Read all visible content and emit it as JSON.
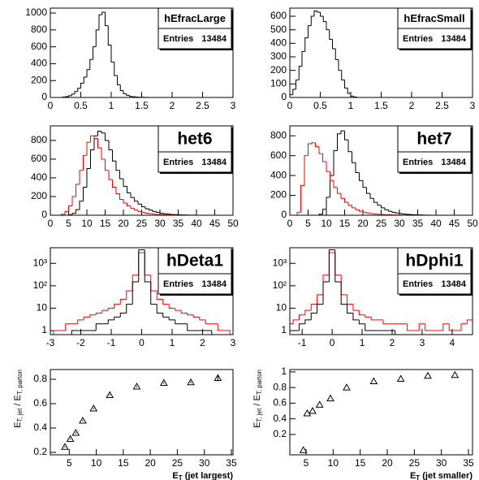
{
  "chart_data": [
    {
      "type": "histogram",
      "title": "hEfracLarge",
      "stats": {
        "label": "Entries",
        "entries": 13484
      },
      "bins": [
        0.2,
        0.25,
        0.3,
        0.35,
        0.4,
        0.45,
        0.5,
        0.55,
        0.6,
        0.65,
        0.7,
        0.75,
        0.8,
        0.85,
        0.9,
        0.95,
        1,
        1.05,
        1.1,
        1.15,
        1.2,
        1.25,
        1.3,
        1.35,
        1.4,
        1.45,
        1.5,
        1.55,
        1.6
      ],
      "series": [
        {
          "color": "#000000",
          "values": [
            5,
            10,
            20,
            40,
            70,
            110,
            170,
            240,
            330,
            450,
            600,
            800,
            980,
            1010,
            850,
            620,
            420,
            260,
            150,
            80,
            45,
            25,
            12,
            8,
            5,
            3,
            2,
            1
          ]
        }
      ],
      "xlim": [
        0,
        3
      ],
      "xticks": [
        0,
        0.5,
        1,
        1.5,
        2,
        2.5,
        3
      ],
      "ylim": [
        0,
        1058
      ],
      "yticks": [
        0,
        200,
        400,
        600,
        800,
        1000
      ]
    },
    {
      "type": "histogram",
      "title": "hEfracSmall",
      "stats": {
        "label": "Entries",
        "entries": 13484
      },
      "bins": [
        0,
        0.05,
        0.1,
        0.15,
        0.2,
        0.25,
        0.3,
        0.35,
        0.4,
        0.45,
        0.5,
        0.55,
        0.6,
        0.65,
        0.7,
        0.75,
        0.8,
        0.85,
        0.9,
        0.95,
        1,
        1.05,
        1.1
      ],
      "series": [
        {
          "color": "#000000",
          "values": [
            20,
            60,
            130,
            230,
            340,
            440,
            530,
            600,
            640,
            630,
            600,
            560,
            500,
            430,
            360,
            280,
            200,
            130,
            70,
            30,
            10,
            3
          ]
        }
      ],
      "xlim": [
        0,
        3
      ],
      "xticks": [
        0,
        0.5,
        1,
        1.5,
        2,
        2.5,
        3
      ],
      "ylim": [
        0,
        660
      ],
      "yticks": [
        0,
        100,
        200,
        300,
        400,
        500,
        600
      ]
    },
    {
      "type": "histogram",
      "title": "het6",
      "stats": {
        "label": "Entries",
        "entries": 13484
      },
      "bins": [
        0,
        1,
        2,
        3,
        4,
        5,
        6,
        7,
        8,
        9,
        10,
        11,
        12,
        13,
        14,
        15,
        16,
        17,
        18,
        19,
        20,
        21,
        22,
        23,
        24,
        25,
        26,
        27,
        28,
        29,
        30,
        31,
        32,
        33,
        34,
        35,
        36,
        37,
        38,
        39,
        40
      ],
      "series": [
        {
          "color": "#000000",
          "values": [
            0,
            0,
            0,
            0,
            0,
            5,
            20,
            60,
            150,
            300,
            500,
            700,
            850,
            900,
            880,
            800,
            700,
            580,
            480,
            390,
            310,
            240,
            190,
            150,
            120,
            90,
            70,
            55,
            40,
            30,
            22,
            16,
            12,
            8,
            6,
            4,
            3,
            2,
            1,
            1
          ]
        },
        {
          "color": "#ff0000",
          "values": [
            0,
            0,
            0,
            10,
            40,
            100,
            200,
            330,
            480,
            640,
            780,
            850,
            820,
            720,
            600,
            480,
            380,
            300,
            230,
            170,
            130,
            100,
            75,
            55,
            40,
            30,
            22,
            16,
            12,
            8,
            6,
            4,
            3,
            2,
            1,
            1,
            0,
            0,
            0,
            0
          ]
        }
      ],
      "xlim": [
        0,
        50
      ],
      "xticks": [
        0,
        5,
        10,
        15,
        20,
        25,
        30,
        35,
        40,
        45,
        50
      ],
      "ylim": [
        0,
        956
      ],
      "yticks": [
        0,
        200,
        400,
        600,
        800
      ]
    },
    {
      "type": "histogram",
      "title": "het7",
      "stats": {
        "label": "Entries",
        "entries": 13484
      },
      "bins": [
        0,
        1,
        2,
        3,
        4,
        5,
        6,
        7,
        8,
        9,
        10,
        11,
        12,
        13,
        14,
        15,
        16,
        17,
        18,
        19,
        20,
        21,
        22,
        23,
        24,
        25,
        26,
        27,
        28,
        29,
        30,
        31,
        32,
        33,
        34,
        35,
        36,
        37,
        38,
        39,
        40
      ],
      "series": [
        {
          "color": "#000000",
          "values": [
            0,
            0,
            0,
            0,
            0,
            0,
            0,
            0,
            10,
            60,
            180,
            400,
            650,
            820,
            850,
            760,
            640,
            530,
            430,
            350,
            280,
            220,
            170,
            130,
            100,
            75,
            55,
            40,
            30,
            22,
            16,
            12,
            8,
            6,
            4,
            3,
            2,
            1,
            1,
            0
          ]
        },
        {
          "color": "#ff0000",
          "values": [
            0,
            0,
            30,
            300,
            600,
            720,
            730,
            690,
            620,
            540,
            440,
            350,
            280,
            220,
            170,
            130,
            100,
            75,
            55,
            40,
            30,
            22,
            16,
            12,
            9,
            7,
            5,
            4,
            3,
            2,
            1,
            1,
            0,
            0,
            0,
            0,
            0,
            0,
            0,
            0
          ]
        }
      ],
      "xlim": [
        0,
        50
      ],
      "xticks": [
        0,
        5,
        10,
        15,
        20,
        25,
        30,
        35,
        40,
        45,
        50
      ],
      "ylim": [
        0,
        900
      ],
      "yticks": [
        0,
        200,
        400,
        600,
        800
      ]
    },
    {
      "type": "histogram",
      "title": "hDeta1",
      "stats": {
        "label": "Entries",
        "entries": 13484
      },
      "log_y": true,
      "bins": [
        -2.9,
        -2.7,
        -2.5,
        -2.3,
        -2.1,
        -1.9,
        -1.7,
        -1.5,
        -1.3,
        -1.1,
        -0.9,
        -0.7,
        -0.5,
        -0.3,
        -0.1,
        0.1,
        0.3,
        0.5,
        0.7,
        0.9,
        1.1,
        1.3,
        1.5,
        1.7,
        1.9,
        2.1,
        2.3,
        2.5,
        2.7,
        2.9
      ],
      "series": [
        {
          "color": "#ff0000",
          "values": [
            1,
            1,
            2,
            2,
            3,
            4,
            5,
            6,
            8,
            10,
            15,
            25,
            60,
            300,
            3000,
            300,
            60,
            25,
            15,
            10,
            8,
            6,
            5,
            4,
            3,
            2,
            2,
            1,
            1
          ]
        },
        {
          "color": "#000000",
          "values": [
            0,
            0,
            0,
            1,
            1,
            1,
            1,
            2,
            2,
            3,
            4,
            6,
            15,
            150,
            4000,
            150,
            15,
            6,
            4,
            3,
            2,
            2,
            1,
            1,
            1,
            1,
            0,
            0,
            0
          ]
        }
      ],
      "xlim": [
        -3,
        3
      ],
      "xticks": [
        -3,
        -2,
        -1,
        0,
        1,
        2,
        3
      ],
      "ylim": [
        0.66,
        5000
      ],
      "yticks": [
        1,
        10,
        {
          "value": 100,
          "label": "10²"
        },
        {
          "value": 1000,
          "label": "10³"
        }
      ]
    },
    {
      "type": "histogram",
      "title": "hDphi1",
      "stats": {
        "label": "Entries",
        "entries": 13484
      },
      "log_y": true,
      "bins": [
        -1.5,
        -1.3,
        -1.1,
        -0.9,
        -0.7,
        -0.5,
        -0.3,
        -0.1,
        0.1,
        0.3,
        0.5,
        0.7,
        0.9,
        1.1,
        1.3,
        1.5,
        1.7,
        1.9,
        2.1,
        2.3,
        2.5,
        2.7,
        2.9,
        3.1,
        3.3,
        3.5,
        3.7,
        3.9,
        4.1,
        4.3,
        4.5,
        4.7
      ],
      "series": [
        {
          "color": "#ff0000",
          "values": [
            2,
            3,
            5,
            8,
            15,
            40,
            300,
            3000,
            300,
            40,
            15,
            8,
            5,
            4,
            3,
            3,
            2,
            2,
            2,
            2,
            1,
            1,
            2,
            1,
            1,
            1,
            2,
            1,
            1,
            2,
            3
          ]
        },
        {
          "color": "#000000",
          "values": [
            1,
            1,
            2,
            3,
            6,
            15,
            150,
            4000,
            150,
            15,
            6,
            3,
            2,
            1,
            1,
            1,
            1,
            1,
            0,
            0,
            0,
            0,
            0,
            0,
            0,
            0,
            0,
            0,
            0,
            0,
            0
          ]
        }
      ],
      "xlim": [
        -1.41,
        4.68
      ],
      "xticks": [
        -1,
        0,
        1,
        2,
        3,
        4
      ],
      "ylim": [
        0.66,
        5000
      ],
      "yticks": [
        1,
        10,
        {
          "value": 100,
          "label": "10²"
        },
        {
          "value": 1000,
          "label": "10³"
        }
      ]
    },
    {
      "type": "scatter",
      "x_label": [
        "E",
        "T",
        " (jet largest)"
      ],
      "y_label": [
        "E",
        "T, jet",
        " / E",
        "T, parton"
      ],
      "x": [
        4.2,
        5.2,
        6.2,
        7.5,
        9.5,
        12.5,
        17.5,
        22.5,
        27.5,
        32.5
      ],
      "values": [
        0.245,
        0.31,
        0.36,
        0.46,
        0.56,
        0.67,
        0.74,
        0.77,
        0.775,
        0.81
      ],
      "errors": [
        0.005,
        0.005,
        0.005,
        0.005,
        0.005,
        0.005,
        0.005,
        0.006,
        0.008,
        0.025
      ],
      "xlim": [
        1.5,
        35.3
      ],
      "xticks": [
        5,
        10,
        15,
        20,
        25,
        30,
        35
      ],
      "ylim": [
        0.18,
        0.88
      ],
      "yticks": [
        0.2,
        0.4,
        0.6,
        0.8
      ]
    },
    {
      "type": "scatter",
      "x_label": [
        "E",
        "T",
        " (jet smaller)"
      ],
      "y_label": [
        "E",
        "T, jet",
        " / E",
        "T, parton"
      ],
      "x": [
        4.5,
        5.2,
        6.2,
        7.5,
        9.5,
        12.5,
        17.5,
        22.5,
        27.5,
        32.5
      ],
      "values": [
        0,
        0.47,
        0.5,
        0.58,
        0.66,
        0.8,
        0.88,
        0.91,
        0.95,
        0.96
      ],
      "xlim": [
        2,
        35.75
      ],
      "xticks": [
        5,
        10,
        15,
        20,
        25,
        30,
        35
      ],
      "ylim": [
        -0.06,
        1.03
      ],
      "yticks": [
        0.2,
        0.4,
        0.6,
        0.8,
        1
      ]
    }
  ]
}
